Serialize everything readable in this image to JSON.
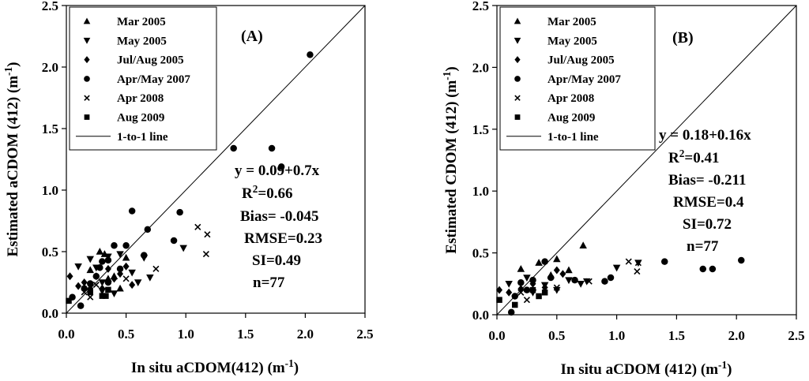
{
  "chart_data": [
    {
      "type": "scatter",
      "panel_label": "(A)",
      "xlabel": "In situ aCDOM(412) (m-1)",
      "ylabel": "Estimated aCDOM (412) (m-1)",
      "xlim": [
        0,
        2.5
      ],
      "ylim": [
        0,
        2.5
      ],
      "xticks": [
        "0.0",
        "0.5",
        "1.0",
        "1.5",
        "2.0",
        "2.5"
      ],
      "yticks": [
        "0.0",
        "0.5",
        "1.0",
        "1.5",
        "2.0",
        "2.5"
      ],
      "legend": [
        {
          "label": "Mar 2005",
          "marker": "triangle-up"
        },
        {
          "label": "May 2005",
          "marker": "triangle-down"
        },
        {
          "label": "Jul/Aug 2005",
          "marker": "diamond"
        },
        {
          "label": "Apr/May 2007",
          "marker": "circle"
        },
        {
          "label": "Apr 2008",
          "marker": "x"
        },
        {
          "label": "Aug 2009",
          "marker": "square"
        },
        {
          "label": "1-to-1 line",
          "marker": "line"
        }
      ],
      "stats": [
        "y = 0.09+0.7x",
        "R2=0.66",
        "Bias= -0.045",
        "RMSE=0.23",
        "SI=0.49",
        "n=77"
      ],
      "series": [
        {
          "name": "Mar 2005",
          "marker": "triangle-up",
          "points": [
            [
              0.28,
              0.5
            ],
            [
              0.32,
              0.48
            ],
            [
              0.35,
              0.28
            ],
            [
              0.45,
              0.2
            ],
            [
              0.5,
              0.45
            ],
            [
              0.2,
              0.35
            ],
            [
              0.4,
              0.3
            ]
          ]
        },
        {
          "name": "May 2005",
          "marker": "triangle-down",
          "points": [
            [
              0.1,
              0.38
            ],
            [
              0.2,
              0.44
            ],
            [
              0.25,
              0.37
            ],
            [
              0.3,
              0.25
            ],
            [
              0.35,
              0.46
            ],
            [
              0.4,
              0.16
            ],
            [
              0.45,
              0.48
            ],
            [
              0.55,
              0.33
            ],
            [
              0.6,
              0.25
            ],
            [
              0.65,
              0.45
            ],
            [
              0.7,
              0.29
            ],
            [
              0.98,
              0.53
            ],
            [
              0.3,
              0.18
            ]
          ]
        },
        {
          "name": "Jul/Aug 2005",
          "marker": "diamond",
          "points": [
            [
              0.03,
              0.3
            ],
            [
              0.1,
              0.22
            ],
            [
              0.15,
              0.25
            ],
            [
              0.2,
              0.2
            ],
            [
              0.3,
              0.2
            ],
            [
              0.35,
              0.36
            ],
            [
              0.4,
              0.28
            ],
            [
              0.45,
              0.32
            ],
            [
              0.55,
              0.23
            ],
            [
              0.25,
              0.3
            ],
            [
              0.5,
              0.38
            ]
          ]
        },
        {
          "name": "Apr/May 2007",
          "marker": "circle",
          "points": [
            [
              0.05,
              0.13
            ],
            [
              0.12,
              0.06
            ],
            [
              0.15,
              0.2
            ],
            [
              0.2,
              0.24
            ],
            [
              0.25,
              0.3
            ],
            [
              0.3,
              0.42
            ],
            [
              0.35,
              0.25
            ],
            [
              0.4,
              0.55
            ],
            [
              0.45,
              0.36
            ],
            [
              0.5,
              0.55
            ],
            [
              0.55,
              0.83
            ],
            [
              0.65,
              0.47
            ],
            [
              0.68,
              0.68
            ],
            [
              0.9,
              0.59
            ],
            [
              0.95,
              0.82
            ],
            [
              1.4,
              1.34
            ],
            [
              1.72,
              1.34
            ],
            [
              1.8,
              1.19
            ],
            [
              2.04,
              2.1
            ],
            [
              0.35,
              0.43
            ],
            [
              0.28,
              0.37
            ]
          ]
        },
        {
          "name": "Apr 2008",
          "marker": "x",
          "points": [
            [
              0.15,
              0.17
            ],
            [
              0.2,
              0.13
            ],
            [
              0.25,
              0.23
            ],
            [
              0.5,
              0.28
            ],
            [
              0.75,
              0.36
            ],
            [
              1.1,
              0.7
            ],
            [
              1.18,
              0.64
            ],
            [
              1.17,
              0.48
            ]
          ]
        },
        {
          "name": "Aug 2009",
          "marker": "square",
          "points": [
            [
              0.02,
              0.1
            ],
            [
              0.2,
              0.17
            ],
            [
              0.3,
              0.14
            ],
            [
              0.35,
              0.19
            ],
            [
              0.33,
              0.14
            ]
          ]
        }
      ]
    },
    {
      "type": "scatter",
      "panel_label": "(B)",
      "xlabel": "In situ aCDOM (412) (m-1)",
      "ylabel": "Estimated CDOM (412) (m-1)",
      "xlim": [
        0,
        2.5
      ],
      "ylim": [
        0,
        2.5
      ],
      "xticks": [
        "0.0",
        "0.5",
        "1.0",
        "1.5",
        "2.0",
        "2.5"
      ],
      "yticks": [
        "0.0",
        "0.5",
        "1.0",
        "1.5",
        "2.0",
        "2.5"
      ],
      "legend": [
        {
          "label": "Mar 2005",
          "marker": "triangle-up"
        },
        {
          "label": "May 2005",
          "marker": "triangle-down"
        },
        {
          "label": "Jul/Aug 2005",
          "marker": "diamond"
        },
        {
          "label": "Apr/May 2007",
          "marker": "circle"
        },
        {
          "label": "Apr 2008",
          "marker": "x"
        },
        {
          "label": "Aug 2009",
          "marker": "square"
        },
        {
          "label": "1-to-1 line",
          "marker": "line"
        }
      ],
      "stats": [
        "y = 0.18+0.16x",
        "R2=0.41",
        "Bias= -0.211",
        "RMSE=0.4",
        "SI=0.72",
        "n=77"
      ],
      "series": [
        {
          "name": "Mar 2005",
          "marker": "triangle-up",
          "points": [
            [
              0.2,
              0.37
            ],
            [
              0.35,
              0.42
            ],
            [
              0.5,
              0.45
            ],
            [
              0.72,
              0.56
            ],
            [
              0.6,
              0.36
            ],
            [
              0.45,
              0.32
            ]
          ]
        },
        {
          "name": "May 2005",
          "marker": "triangle-down",
          "points": [
            [
              0.1,
              0.25
            ],
            [
              0.25,
              0.3
            ],
            [
              0.3,
              0.18
            ],
            [
              0.4,
              0.24
            ],
            [
              0.5,
              0.2
            ],
            [
              0.6,
              0.28
            ],
            [
              0.7,
              0.25
            ],
            [
              0.75,
              0.27
            ],
            [
              1.0,
              0.38
            ],
            [
              1.18,
              0.42
            ]
          ]
        },
        {
          "name": "Jul/Aug 2005",
          "marker": "diamond",
          "points": [
            [
              0.02,
              0.2
            ],
            [
              0.1,
              0.18
            ],
            [
              0.2,
              0.21
            ],
            [
              0.3,
              0.25
            ],
            [
              0.4,
              0.22
            ],
            [
              0.55,
              0.33
            ],
            [
              0.5,
              0.36
            ]
          ]
        },
        {
          "name": "Apr/May 2007",
          "marker": "circle",
          "points": [
            [
              0.12,
              0.02
            ],
            [
              0.15,
              0.15
            ],
            [
              0.2,
              0.26
            ],
            [
              0.25,
              0.2
            ],
            [
              0.3,
              0.28
            ],
            [
              0.4,
              0.43
            ],
            [
              0.45,
              0.3
            ],
            [
              0.65,
              0.28
            ],
            [
              0.9,
              0.27
            ],
            [
              0.95,
              0.3
            ],
            [
              1.4,
              0.43
            ],
            [
              1.72,
              0.37
            ],
            [
              1.8,
              0.37
            ],
            [
              2.04,
              0.44
            ]
          ]
        },
        {
          "name": "Apr 2008",
          "marker": "x",
          "points": [
            [
              0.2,
              0.18
            ],
            [
              0.25,
              0.12
            ],
            [
              0.5,
              0.22
            ],
            [
              0.77,
              0.27
            ],
            [
              1.1,
              0.43
            ],
            [
              1.18,
              0.42
            ],
            [
              1.17,
              0.35
            ]
          ]
        },
        {
          "name": "Aug 2009",
          "marker": "square",
          "points": [
            [
              0.02,
              0.12
            ],
            [
              0.15,
              0.08
            ],
            [
              0.3,
              0.2
            ],
            [
              0.35,
              0.15
            ],
            [
              0.4,
              0.18
            ]
          ]
        }
      ]
    }
  ]
}
